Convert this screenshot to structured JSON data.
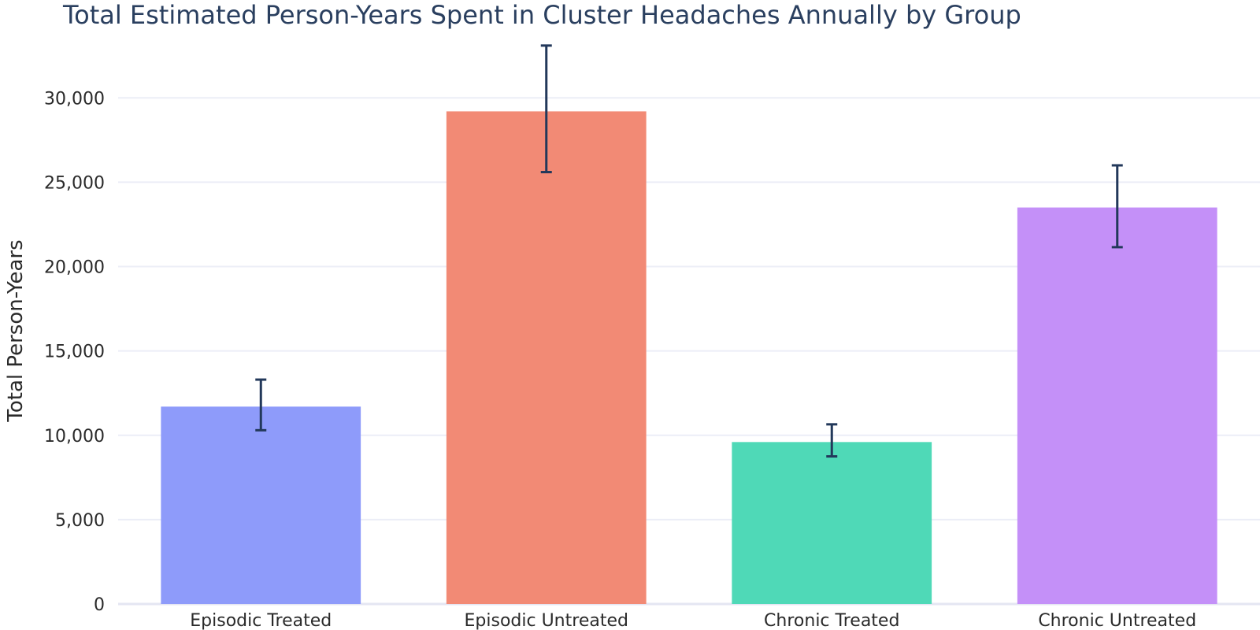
{
  "chart_data": {
    "type": "bar",
    "title": "Total Estimated Person-Years Spent in Cluster Headaches Annually by Group",
    "xlabel": "",
    "ylabel": "Total Person-Years",
    "categories": [
      "Episodic Treated",
      "Episodic Untreated",
      "Chronic Treated",
      "Chronic Untreated"
    ],
    "values": [
      11700,
      29200,
      9600,
      23500
    ],
    "error_low": [
      10300,
      25600,
      8750,
      21150
    ],
    "error_high": [
      13300,
      33100,
      10650,
      26000
    ],
    "colors": [
      "#8e9bfa",
      "#f28a75",
      "#4fd9b7",
      "#c490f8"
    ],
    "error_color": "#22385a",
    "ylim": [
      0,
      33000
    ],
    "yticks": [
      0,
      5000,
      10000,
      15000,
      20000,
      25000,
      30000
    ],
    "ytick_labels": [
      "0",
      "5,000",
      "10,000",
      "15,000",
      "20,000",
      "25,000",
      "30,000"
    ],
    "grid": true
  }
}
